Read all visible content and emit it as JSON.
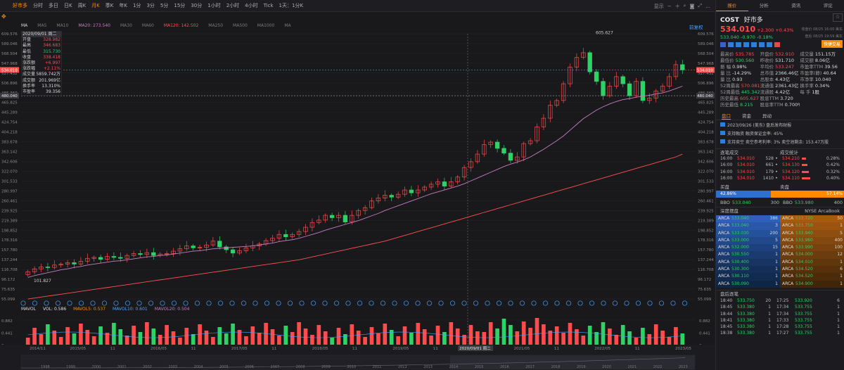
{
  "toolbar": {
    "tabs": [
      "好市多",
      "分时",
      "多日",
      "日K",
      "周K",
      "月K",
      "季K",
      "年K",
      "1分",
      "3分",
      "5分",
      "15分",
      "30分",
      "1小时",
      "2小时",
      "4小时",
      "Tick",
      "1天：1分K"
    ],
    "active_index": 5,
    "right_label": "显示"
  },
  "ma_row": {
    "ma_label": "MA",
    "items": [
      "MA5",
      "MA10",
      "MA20: 273.540",
      "MA30",
      "MA60",
      "MA120: 142.502",
      "MA250",
      "MA500",
      "MA1000",
      "MA"
    ],
    "colors": [
      "#7a7a7a",
      "#7a7a7a",
      "#c77cc0",
      "#7a7a7a",
      "#7a7a7a",
      "#ff5050",
      "#7a7a7a",
      "#7a7a7a",
      "#7a7a7a",
      "#7a7a7a"
    ]
  },
  "prev_restore": "前复权",
  "infobox": {
    "date": "2020/09/01 周二",
    "rows": [
      {
        "k": "开盘",
        "v": "328.982",
        "c": "red"
      },
      {
        "k": "最高",
        "v": "346.683",
        "c": "red"
      },
      {
        "k": "最低",
        "v": "315.730",
        "c": "grn"
      },
      {
        "k": "收盘",
        "v": "338.418",
        "c": "red"
      },
      {
        "k": "涨跌额",
        "v": "+6.997",
        "c": "red"
      },
      {
        "k": "涨跌幅",
        "v": "+2.11%",
        "c": "red"
      },
      {
        "k": "成交量",
        "v": "5859.742万",
        "c": "wht"
      },
      {
        "k": "成交额",
        "v": "201.969亿",
        "c": "wht"
      },
      {
        "k": "换手率",
        "v": "13.310%",
        "c": "wht"
      },
      {
        "k": "市盈率",
        "v": "39.356",
        "c": "wht"
      }
    ]
  },
  "yaxis": [
    "609.576",
    "589.046",
    "568.504",
    "547.968",
    "527.432",
    "506.896",
    "486.360",
    "465.825",
    "445.289",
    "424.754",
    "404.218",
    "383.678",
    "363.142",
    "342.606",
    "322.070",
    "301.533",
    "280.997",
    "260.461",
    "239.925",
    "219.389",
    "198.852",
    "178.316",
    "157.780",
    "137.244",
    "116.708",
    "96.172",
    "75.635",
    "55.099"
  ],
  "ylabel_current": "534.010",
  "ylabel_cross": "480.040",
  "annot_high": "605.627",
  "annot_low": "101.827",
  "vol_row": {
    "title": "MAVOL",
    "items": [
      "VOL: 0.586",
      "MAVOL5: 0.537",
      "MAVOL10: 0.601",
      "MAVOL20: 0.504"
    ],
    "colors": [
      "#e0e0e0",
      "#ff8a00",
      "#4aa3ff",
      "#c77cc0"
    ]
  },
  "vol_axis": [
    "0.882",
    "0.441",
    "0"
  ],
  "xdates": [
    "2014/11",
    "2015/05",
    "11",
    "2016/05",
    "11",
    "2017/05",
    "11",
    "2018/05",
    "11",
    "2019/05",
    "11",
    "2020/09/01 周二",
    "2021/05",
    "11",
    "2022/05",
    "11",
    "2023/05"
  ],
  "years": [
    "1998",
    "1999",
    "2000",
    "2001",
    "2002",
    "2003",
    "2004",
    "2005",
    "2006",
    "2007",
    "2008",
    "2009",
    "2010",
    "2011",
    "2012",
    "2013",
    "2014",
    "2015",
    "2016",
    "2017",
    "2018",
    "2019",
    "2020",
    "2021",
    "2022",
    "2023"
  ],
  "chart_data": {
    "type": "candlestick",
    "title": "COST 月K",
    "period": "2014/11 - 2023/09",
    "ylim": [
      55.099,
      609.576
    ],
    "closes": [
      112,
      118,
      122,
      121,
      126,
      128,
      131,
      128,
      134,
      140,
      142,
      138,
      144,
      142,
      140,
      146,
      150,
      148,
      152,
      146,
      149,
      150,
      155,
      160,
      166,
      162,
      163,
      168,
      176,
      164,
      158,
      151,
      156,
      162,
      166,
      170,
      177,
      182,
      190,
      185,
      190,
      196,
      205,
      215,
      220,
      230,
      225,
      230,
      216,
      230,
      240,
      246,
      260,
      266,
      272,
      268,
      274,
      283,
      277,
      283,
      289,
      295,
      300,
      291,
      300,
      310,
      330,
      342,
      358,
      378,
      383,
      370,
      360,
      345,
      352,
      380,
      386,
      415,
      433,
      460,
      470,
      505,
      540,
      560,
      570,
      530,
      510,
      480,
      500,
      520,
      505,
      480,
      510,
      470,
      475,
      490,
      500,
      520,
      545,
      534
    ],
    "ma20": [
      100,
      104,
      107,
      110,
      113,
      116,
      118,
      121,
      123,
      126,
      128,
      130,
      132,
      134,
      135,
      137,
      139,
      141,
      143,
      144,
      146,
      147,
      149,
      151,
      153,
      155,
      156,
      158,
      160,
      161,
      162,
      163,
      164,
      165,
      166,
      168,
      170,
      172,
      175,
      177,
      179,
      182,
      186,
      190,
      194,
      199,
      203,
      207,
      211,
      215,
      219,
      224,
      229,
      234,
      240,
      245,
      250,
      255,
      260,
      265,
      270,
      275,
      279,
      283,
      287,
      291,
      296,
      302,
      308,
      314,
      320,
      326,
      332,
      337,
      341,
      346,
      352,
      360,
      368,
      377,
      386,
      396,
      408,
      420,
      432,
      441,
      450,
      457,
      463,
      468,
      472,
      474,
      477,
      479,
      481,
      484,
      486,
      490,
      495,
      500
    ],
    "ma120": [
      55,
      57,
      59,
      61,
      63,
      65,
      67,
      69,
      71,
      73,
      75,
      77,
      79,
      81,
      83,
      85,
      87,
      89,
      91,
      93,
      95,
      97,
      99,
      101,
      103,
      105,
      107,
      109,
      111,
      113,
      115,
      117,
      119,
      121,
      123,
      125,
      127,
      129,
      131,
      133,
      135,
      137,
      140,
      143,
      146,
      149,
      152,
      155,
      158,
      161,
      164,
      167,
      170,
      173,
      176,
      180,
      184,
      188,
      192,
      196,
      200,
      204,
      208,
      212,
      216,
      220,
      224,
      228,
      232,
      236,
      240,
      244,
      248,
      252,
      256,
      260,
      264,
      268,
      272,
      276,
      280,
      284,
      288,
      292,
      296,
      300,
      304,
      308,
      312,
      316,
      320,
      324,
      328,
      332,
      336,
      340,
      344,
      348,
      352,
      358
    ]
  },
  "panel": {
    "tabs": [
      "报价",
      "分析",
      "资讯",
      "评论"
    ],
    "active": 0,
    "ticker": "COST",
    "name": "好市多",
    "price": "534.010",
    "change": "+2.300 +0.43%",
    "status1": "收盘价 08/25 16:00 美东",
    "after_price": "533.040",
    "after_change": "-0.970 -0.18%",
    "status2": "盘后 08/25 19:59 美东",
    "trade_btn": "快捷交易",
    "stats": [
      [
        "最高价",
        "535.785",
        "red",
        "开盘价",
        "532.910",
        "red",
        "成交量",
        "151.15万",
        "wht"
      ],
      [
        "最低价",
        "530.560",
        "grn",
        "昨收价",
        "531.710",
        "wht",
        "成交额",
        "8.06亿",
        "wht"
      ],
      [
        "振    幅",
        "0.98%",
        "wht",
        "平均价",
        "533.247",
        "red",
        "市盈率TTM",
        "39.56",
        "wht"
      ],
      [
        "量    比",
        "-14.29%",
        "wht",
        "总市值",
        "2366.46亿",
        "wht",
        "市盈率(静)",
        "40.64",
        "wht"
      ],
      [
        "量    比",
        "0.93",
        "wht",
        "总股本",
        "4.43亿",
        "wht",
        "市净率",
        "10.040",
        "wht"
      ],
      [
        "52周最高",
        "570.081",
        "red",
        "流通值",
        "2361.43亿",
        "wht",
        "换手率",
        "0.34%",
        "wht"
      ],
      [
        "52周最低",
        "445.342",
        "grn",
        "流通股",
        "4.42亿",
        "wht",
        "每    手",
        "1股",
        "wht"
      ],
      [
        "历史最高",
        "605.627",
        "red",
        "股息TTM",
        "3.720",
        "wht",
        "",
        "",
        ""
      ],
      [
        "历史最低",
        "8.215",
        "grn",
        "股息率TTM",
        "0.700%",
        "wht",
        "",
        "",
        ""
      ]
    ],
    "section_tabs": [
      "盘口",
      "资金",
      "异动"
    ],
    "notices": [
      "2023/09/26 (美东)   盘后发布财报",
      "支持融资   融资保证金率: 45%",
      "支持卖空   卖空参考利率: 3%  卖空池剩余: 153.47万股"
    ],
    "trades_title": "逐笔成交",
    "trade_stats_title": "成交统计",
    "trades": [
      [
        "16:00",
        "534.010",
        "528"
      ],
      [
        "16:00",
        "534.010",
        "661"
      ],
      [
        "16:00",
        "534.010",
        "179"
      ],
      [
        "16:00",
        "534.010",
        "1410"
      ]
    ],
    "trade_stats": [
      [
        "534.210",
        "0.28%"
      ],
      [
        "534.130",
        "0.42%"
      ],
      [
        "534.120",
        "0.32%"
      ],
      [
        "534.110",
        "0.40%"
      ]
    ],
    "buy_label": "买盘",
    "sell_label": "卖盘",
    "buy_pct": "42.86%",
    "sell_pct": "57.14%",
    "bbo_buy": {
      "label": "BBO",
      "price": "533.040",
      "qty": "300"
    },
    "bbo_sell": {
      "label": "BBO",
      "price": "533.980",
      "qty": "400"
    },
    "depth_title": "深度摆盘",
    "depth_source": "NYSE ArcaBook",
    "bids": [
      [
        "ARCA",
        "533.040",
        "386"
      ],
      [
        "ARCA",
        "533.040",
        "3"
      ],
      [
        "ARCA",
        "533.030",
        "200"
      ],
      [
        "ARCA",
        "533.000",
        "5"
      ],
      [
        "ARCA",
        "532.000",
        "15"
      ],
      [
        "ARCA",
        "530.550",
        "1"
      ],
      [
        "ARCA",
        "530.400",
        "1"
      ],
      [
        "ARCA",
        "530.300",
        "1"
      ],
      [
        "ARCA",
        "530.110",
        "1"
      ],
      [
        "ARCA",
        "530.090",
        "1"
      ]
    ],
    "asks": [
      [
        "ARCA",
        "533.720",
        "50"
      ],
      [
        "ARCA",
        "533.750",
        "1"
      ],
      [
        "ARCA",
        "533.940",
        "5"
      ],
      [
        "ARCA",
        "533.980",
        "400"
      ],
      [
        "ARCA",
        "533.990",
        "100"
      ],
      [
        "ARCA",
        "534.000",
        "12"
      ],
      [
        "ARCA",
        "534.010",
        "1"
      ],
      [
        "ARCA",
        "534.520",
        "6"
      ],
      [
        "ARCA",
        "534.520",
        "1"
      ],
      [
        "ARCA",
        "534.900",
        "1"
      ]
    ],
    "after_title": "盘后逐笔",
    "after_trades": [
      [
        "18:40",
        "533.750",
        "20",
        "17:25",
        "533.920",
        "6"
      ],
      [
        "18:45",
        "533.380",
        "1",
        "17:34",
        "533.755",
        "1"
      ],
      [
        "18:44",
        "533.380",
        "1",
        "17:34",
        "533.755",
        "1"
      ],
      [
        "18:41",
        "533.380",
        "1",
        "17:33",
        "533.755",
        "1"
      ],
      [
        "18:45",
        "533.380",
        "1",
        "17:28",
        "533.755",
        "1"
      ],
      [
        "18:38",
        "533.380",
        "1",
        "17:27",
        "533.755",
        "1"
      ]
    ]
  }
}
